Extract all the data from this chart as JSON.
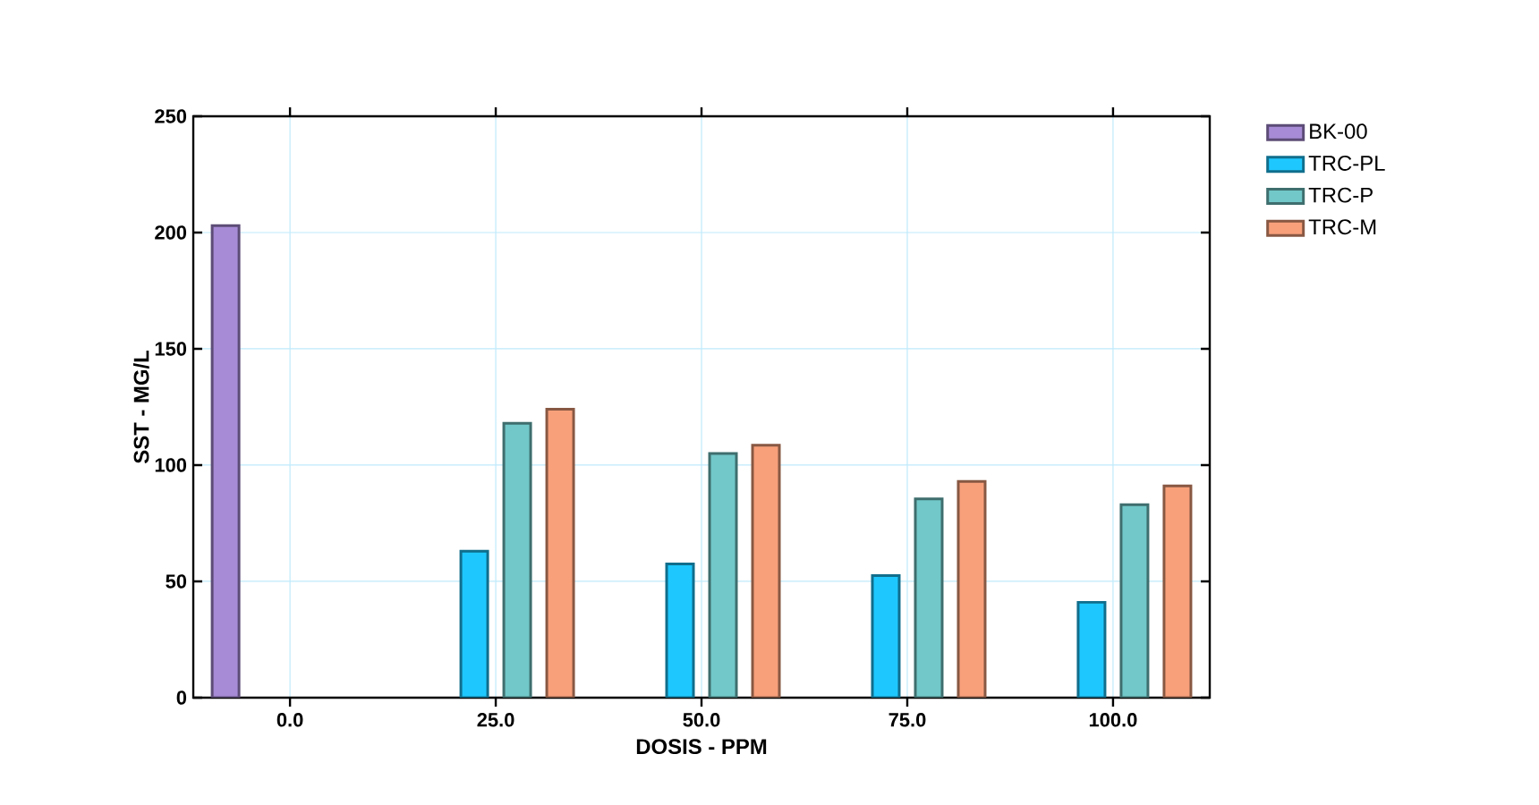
{
  "chart_data": {
    "type": "bar",
    "xlabel": "DOSIS - PPM",
    "ylabel": "SST - MG/L",
    "categories": [
      "0.0",
      "25.0",
      "50.0",
      "75.0",
      "100.0"
    ],
    "series": [
      {
        "name": "BK-00",
        "color": "#a78bd6",
        "values": [
          203,
          null,
          null,
          null,
          null
        ]
      },
      {
        "name": "TRC-PL",
        "color": "#1ec8ff",
        "values": [
          null,
          63,
          57.5,
          52.5,
          41
        ]
      },
      {
        "name": "TRC-P",
        "color": "#72c8c8",
        "values": [
          null,
          118,
          105,
          85.5,
          83
        ]
      },
      {
        "name": "TRC-M",
        "color": "#f8a07a",
        "values": [
          null,
          124,
          108.5,
          93,
          91
        ]
      }
    ],
    "ylim": [
      0,
      250
    ],
    "yticks": [
      0,
      50,
      100,
      150,
      200,
      250
    ],
    "grid": true,
    "legend": "right"
  }
}
